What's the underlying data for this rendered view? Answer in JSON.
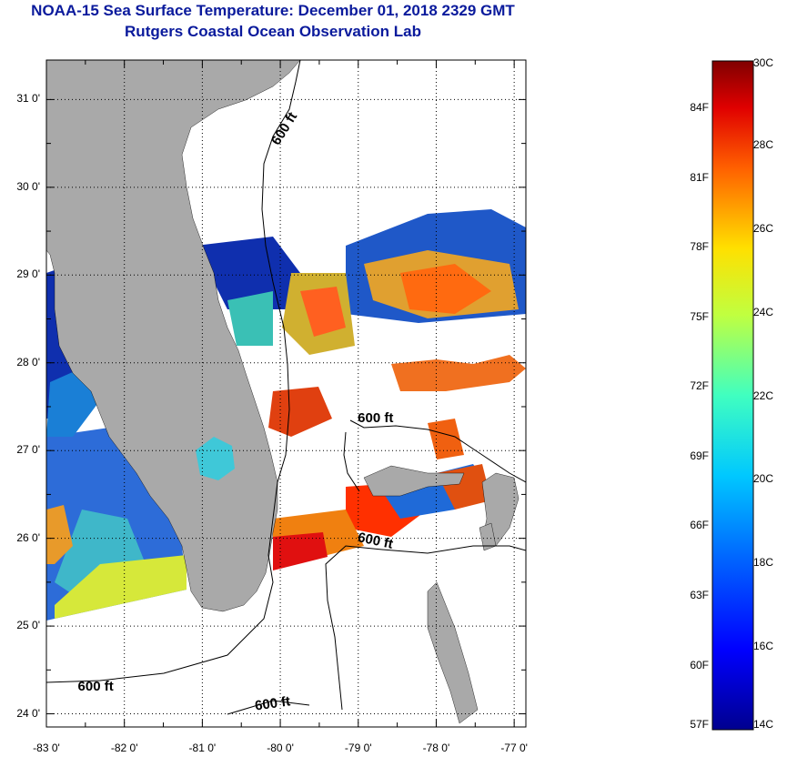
{
  "title_line1": "NOAA-15 Sea Surface Temperature:  December 01, 2018 2329 GMT",
  "title_line2": "Rutgers Coastal Ocean Observation Lab",
  "latitudes": [
    {
      "label": "31 0'",
      "value": 31
    },
    {
      "label": "30 0'",
      "value": 30
    },
    {
      "label": "29 0'",
      "value": 29
    },
    {
      "label": "28 0'",
      "value": 28
    },
    {
      "label": "27 0'",
      "value": 27
    },
    {
      "label": "26 0'",
      "value": 26
    },
    {
      "label": "25 0'",
      "value": 25
    },
    {
      "label": "24 0'",
      "value": 24
    }
  ],
  "longitudes": [
    {
      "label": "-83 0'",
      "value": -83
    },
    {
      "label": "-82 0'",
      "value": -82
    },
    {
      "label": "-81 0'",
      "value": -81
    },
    {
      "label": "-80 0'",
      "value": -80
    },
    {
      "label": "-79 0'",
      "value": -79
    },
    {
      "label": "-78 0'",
      "value": -78
    },
    {
      "label": "-77 0'",
      "value": -77
    }
  ],
  "map_extent": {
    "lon_min": -83.0,
    "lon_max": -76.85,
    "lat_min": 23.85,
    "lat_max": 31.45
  },
  "contour_labels": [
    {
      "text": "600 ft",
      "lon": -79.92,
      "lat": 30.65
    },
    {
      "text": "600 ft",
      "lon": -78.75,
      "lat": 27.35
    },
    {
      "text": "600 ft",
      "lon": -78.75,
      "lat": 25.95
    },
    {
      "text": "600 ft",
      "lon": -82.34,
      "lat": 24.3
    },
    {
      "text": "600 ft",
      "lon": -80.07,
      "lat": 24.1
    }
  ],
  "colorbar": {
    "fahrenheit": [
      "84F",
      "81F",
      "78F",
      "75F",
      "72F",
      "69F",
      "66F",
      "63F",
      "60F",
      "57F"
    ],
    "celsius": [
      "30C",
      "28C",
      "26C",
      "24C",
      "22C",
      "20C",
      "18C",
      "16C",
      "14C"
    ],
    "min_c": 14,
    "max_c": 30
  },
  "colors": {
    "title": "#0a1a9c",
    "land": "#a9a9a9",
    "sea_no_data": "#ffffff"
  }
}
